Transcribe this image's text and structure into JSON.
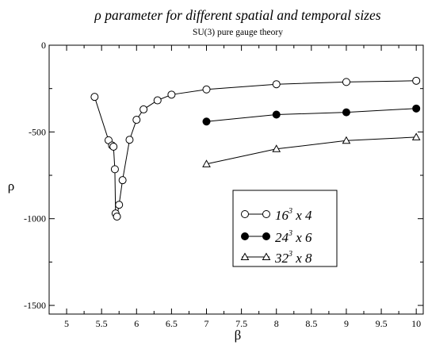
{
  "chart_data": {
    "type": "line",
    "title": "ρ parameter for different spatial and temporal sizes",
    "subtitle": "SU(3) pure gauge theory",
    "xlabel": "β",
    "ylabel": "ρ",
    "xlim": [
      4.75,
      10.1
    ],
    "ylim": [
      -1550,
      0
    ],
    "x_ticks": [
      {
        "pos": 5,
        "label": "5"
      },
      {
        "pos": 5.5,
        "label": "5.5"
      },
      {
        "pos": 6,
        "label": "6"
      },
      {
        "pos": 6.5,
        "label": "6.5"
      },
      {
        "pos": 7,
        "label": "7"
      },
      {
        "pos": 7.5,
        "label": "7.5"
      },
      {
        "pos": 8,
        "label": "8"
      },
      {
        "pos": 8.5,
        "label": "8.5"
      },
      {
        "pos": 9,
        "label": "9"
      },
      {
        "pos": 9.5,
        "label": "9.5"
      },
      {
        "pos": 10,
        "label": "10"
      }
    ],
    "y_ticks": [
      {
        "pos": 0,
        "label": "0"
      },
      {
        "pos": -500,
        "label": "-500"
      },
      {
        "pos": -1000,
        "label": "-1000"
      },
      {
        "pos": -1500,
        "label": "-1500"
      }
    ],
    "grid": false,
    "legend_position": "lower-right",
    "series": [
      {
        "name": "16³ x 4",
        "marker": "open-circle",
        "points": [
          {
            "x": 5.4,
            "y": -298
          },
          {
            "x": 5.6,
            "y": -548
          },
          {
            "x": 5.65,
            "y": -578
          },
          {
            "x": 5.67,
            "y": -585
          },
          {
            "x": 5.69,
            "y": -715
          },
          {
            "x": 5.7,
            "y": -970
          },
          {
            "x": 5.72,
            "y": -988
          },
          {
            "x": 5.75,
            "y": -920
          },
          {
            "x": 5.8,
            "y": -778
          },
          {
            "x": 5.9,
            "y": -545
          },
          {
            "x": 6.0,
            "y": -430
          },
          {
            "x": 6.1,
            "y": -370
          },
          {
            "x": 6.3,
            "y": -318
          },
          {
            "x": 6.5,
            "y": -285
          },
          {
            "x": 7.0,
            "y": -255
          },
          {
            "x": 8.0,
            "y": -225
          },
          {
            "x": 9.0,
            "y": -212
          },
          {
            "x": 10.0,
            "y": -205
          }
        ]
      },
      {
        "name": "24³ x 6",
        "marker": "filled-circle",
        "points": [
          {
            "x": 7.0,
            "y": -440
          },
          {
            "x": 8.0,
            "y": -400
          },
          {
            "x": 9.0,
            "y": -387
          },
          {
            "x": 10.0,
            "y": -365
          }
        ]
      },
      {
        "name": "32³ x 8",
        "marker": "open-triangle",
        "points": [
          {
            "x": 7.0,
            "y": -685
          },
          {
            "x": 8.0,
            "y": -598
          },
          {
            "x": 9.0,
            "y": -550
          },
          {
            "x": 10.0,
            "y": -530
          }
        ]
      }
    ],
    "legend": {
      "entries": [
        {
          "base": "16",
          "exp": "3",
          "rest": " x 4"
        },
        {
          "base": "24",
          "exp": "3",
          "rest": " x 6"
        },
        {
          "base": "32",
          "exp": "3",
          "rest": " x 8"
        }
      ]
    }
  }
}
